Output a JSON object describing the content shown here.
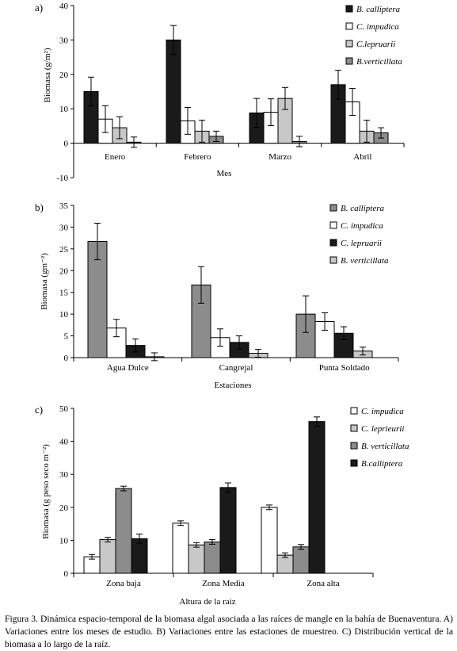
{
  "caption": "Figura 3. Dinámica espacio-temporal de la biomasa algal asociada a las raíces de mangle en la bahía de Buenaventura. A) Variaciones entre los meses de estudio. B) Variaciones entre las estaciones de muestreo. C) Distribución vertical de la biomasa a lo largo de la raíz.",
  "chart_data": [
    {
      "type": "bar",
      "panel_label": "a)",
      "categories": [
        "Enero",
        "Febrero",
        "Marzo",
        "Abril"
      ],
      "series": [
        {
          "name": "B. calliptera",
          "color": "#1a1a1a",
          "values": [
            15,
            30,
            8.8,
            17
          ],
          "errors": [
            4.2,
            4.2,
            4.2,
            4.2
          ]
        },
        {
          "name": "C. impudica",
          "color": "#ffffff",
          "values": [
            7,
            6.5,
            9,
            12
          ],
          "errors": [
            3.9,
            3.9,
            3.9,
            3.9
          ]
        },
        {
          "name": "C.lepruarii",
          "color": "#c8c8c8",
          "values": [
            4.5,
            3.5,
            13,
            3.5
          ],
          "errors": [
            3.2,
            3.2,
            3.2,
            3.2
          ]
        },
        {
          "name": "B.verticillata",
          "color": "#8c8c8c",
          "values": [
            0.3,
            2,
            0.5,
            3
          ],
          "errors": [
            1.5,
            1.5,
            1.5,
            1.5
          ]
        }
      ],
      "xlabel": "Mes",
      "ylabel": "Biomasa (g/m²)",
      "ylim": [
        -10,
        40
      ],
      "yticks": [
        "-10",
        "0",
        "10",
        "20",
        "30",
        "40"
      ],
      "yticks_values": [
        -10,
        0,
        10,
        20,
        30,
        40
      ],
      "legend_position": "top-right"
    },
    {
      "type": "bar",
      "panel_label": "b)",
      "categories": [
        "Agua Dulce",
        "Cangrejal",
        "Punta Soldado"
      ],
      "series": [
        {
          "name": "B. calliptera",
          "color": "#8c8c8c",
          "values": [
            26.7,
            16.7,
            10
          ],
          "errors": [
            4.2,
            4.2,
            4.2
          ]
        },
        {
          "name": "C. impudica",
          "color": "#ffffff",
          "values": [
            6.8,
            4.6,
            8.3
          ],
          "errors": [
            2,
            2,
            2
          ]
        },
        {
          "name": "C. lepruarii",
          "color": "#1a1a1a",
          "values": [
            2.8,
            3.5,
            5.6
          ],
          "errors": [
            1.5,
            1.5,
            1.5
          ]
        },
        {
          "name": "B. verticillata",
          "color": "#c8c8c8",
          "values": [
            0.2,
            1,
            1.5
          ],
          "errors": [
            0.9,
            0.9,
            0.9
          ]
        }
      ],
      "xlabel": "Estaciones",
      "ylabel": "Biomasa (gm⁻²)",
      "ylim": [
        0,
        35
      ],
      "yticks": [
        "0",
        "5",
        "10",
        "15",
        "20",
        "25",
        "30",
        "35"
      ],
      "yticks_values": [
        0,
        5,
        10,
        15,
        20,
        25,
        30,
        35
      ],
      "legend_position": "top-right"
    },
    {
      "type": "bar",
      "panel_label": "c)",
      "categories": [
        "Zona baja",
        "Zona Media",
        "Zona alta"
      ],
      "series": [
        {
          "name": "C. impudica",
          "color": "#ffffff",
          "values": [
            5,
            15.2,
            20
          ],
          "errors": [
            0.7,
            0.7,
            0.7
          ]
        },
        {
          "name": "C. leprieurii",
          "color": "#c8c8c8",
          "values": [
            10.2,
            8.6,
            5.5
          ],
          "errors": [
            0.7,
            0.7,
            0.7
          ]
        },
        {
          "name": "B. verticillata",
          "color": "#8c8c8c",
          "values": [
            25.7,
            9.5,
            8
          ],
          "errors": [
            0.7,
            0.7,
            0.7
          ]
        },
        {
          "name": "B.calliptera",
          "color": "#1a1a1a",
          "values": [
            10.5,
            26,
            46
          ],
          "errors": [
            1.4,
            1.4,
            1.4
          ]
        }
      ],
      "xlabel": "Altura de la raiz",
      "ylabel": "Biomasa (g peso seco m⁻²)",
      "ylim": [
        0,
        50
      ],
      "yticks": [
        "0",
        "10",
        "20",
        "30",
        "40",
        "50"
      ],
      "yticks_values": [
        0,
        10,
        20,
        30,
        40,
        50
      ],
      "legend_position": "top-right"
    }
  ]
}
